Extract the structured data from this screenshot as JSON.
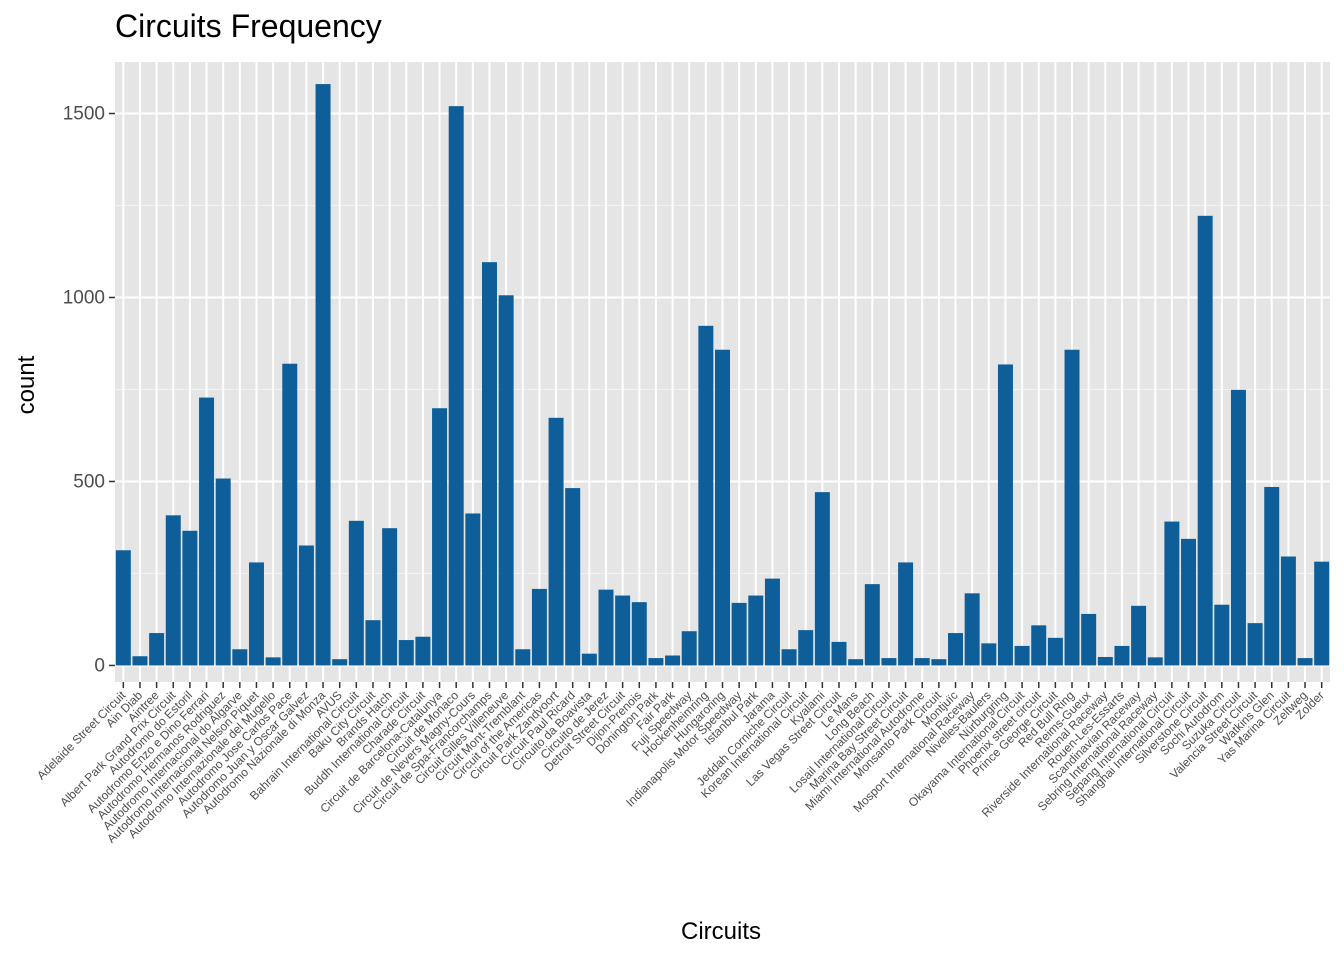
{
  "chart_data": {
    "type": "bar",
    "title": "Circuits Frequency",
    "xlabel": "Circuits",
    "ylabel": "count",
    "ylim": [
      -45,
      1640
    ],
    "yticks": [
      0,
      500,
      1000,
      1500
    ],
    "grid": true,
    "bar_color": "#0e5e99",
    "panel_color": "#e5e5e5",
    "categories": [
      "Adelaide Street Circuit",
      "Ain Diab",
      "Aintree",
      "Albert Park Grand Prix Circuit",
      "Autodromo do Estoril",
      "Autodromo Enzo e Dino Ferrari",
      "Autodromo Hermanos Rodriguez",
      "Autodromo Internacional do Algarve",
      "Autodromo Internacional Nelson Piquet",
      "Autodromo Internazionale del Mugello",
      "Autodromo Jose Carlos Pace",
      "Autodromo Juan y Oscar Galvez",
      "Autodromo Nazionale di Monza",
      "AVUS",
      "Bahrain International Circuit",
      "Baku City Circuit",
      "Brands Hatch",
      "Buddh International Circuit",
      "Charade Circuit",
      "Circuit de Barcelona-Catalunya",
      "Circuit de Monaco",
      "Circuit de Nevers Magny-Cours",
      "Circuit de Spa-Francorchamps",
      "Circuit Gilles Villeneuve",
      "Circuit Mont-Tremblant",
      "Circuit of the Americas",
      "Circuit Park Zandvoort",
      "Circuit Paul Ricard",
      "Circuito da Boavista",
      "Circuito de Jerez",
      "Detroit Street Circuit",
      "Dijon-Prenois",
      "Donington Park",
      "Fair Park",
      "Fuji Speedway",
      "Hockenheimring",
      "Hungaroring",
      "Indianapolis Motor Speedway",
      "Istanbul Park",
      "Jarama",
      "Jeddah Corniche Circuit",
      "Korean International Circuit",
      "Kyalami",
      "Las Vegas Street Circuit",
      "Le Mans",
      "Long Beach",
      "Losail International Circuit",
      "Marina Bay Street Circuit",
      "Miami International Autodrome",
      "Monsanto Park Circuit",
      "Montjuïc",
      "Mosport International Raceway",
      "Nivelles-Baulers",
      "Nürburgring",
      "Okayama International Circuit",
      "Phoenix street circuit",
      "Prince George Circuit",
      "Red Bull Ring",
      "Reims-Gueux",
      "Riverside International Raceway",
      "Rouen-Les-Essarts",
      "Scandinavian Raceway",
      "Sebring International Raceway",
      "Sepang International Circuit",
      "Shanghai International Circuit",
      "Silverstone Circuit",
      "Sochi Autodrom",
      "Suzuka Circuit",
      "Valencia Street Circuit",
      "Watkins Glen",
      "Yas Marina Circuit",
      "Zeltweg",
      "Zolder"
    ],
    "values": [
      313,
      25,
      88,
      408,
      366,
      728,
      508,
      44,
      280,
      22,
      820,
      326,
      1580,
      17,
      393,
      123,
      373,
      69,
      78,
      699,
      1520,
      413,
      1096,
      1006,
      44,
      208,
      673,
      482,
      32,
      206,
      190,
      172,
      20,
      27,
      93,
      923,
      858,
      170,
      190,
      236,
      44,
      96,
      471,
      64,
      17,
      221,
      20,
      280,
      20,
      17,
      88,
      196,
      60,
      818,
      53,
      109,
      75,
      858,
      140,
      23,
      53,
      162,
      22,
      391,
      344,
      1222,
      165,
      749,
      115,
      485,
      296,
      20,
      282
    ]
  }
}
